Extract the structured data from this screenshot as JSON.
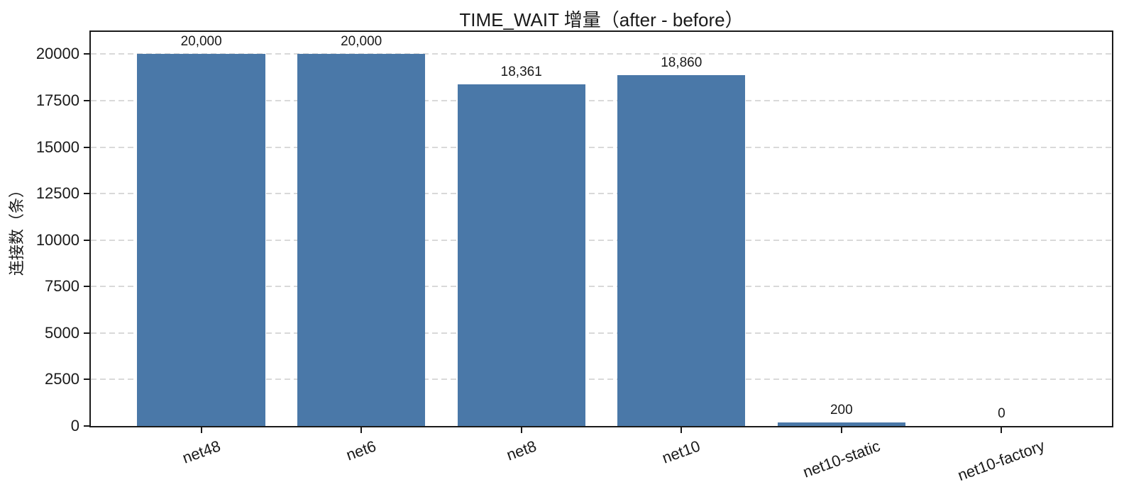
{
  "chart_data": {
    "type": "bar",
    "title": "TIME_WAIT 增量（after - before）",
    "xlabel": "",
    "ylabel": "连接数（条）",
    "categories": [
      "net48",
      "net6",
      "net8",
      "net10",
      "net10-static",
      "net10-factory"
    ],
    "values": [
      20000,
      20000,
      18361,
      18860,
      200,
      0
    ],
    "value_labels": [
      "20,000",
      "20,000",
      "18,361",
      "18,860",
      "200",
      "0"
    ],
    "yticks": [
      0,
      2500,
      5000,
      7500,
      10000,
      12500,
      15000,
      17500,
      20000
    ],
    "ytick_labels": [
      "0",
      "2500",
      "5000",
      "7500",
      "10000",
      "12500",
      "15000",
      "17500",
      "20000"
    ],
    "ylim": [
      0,
      21200
    ],
    "grid": {
      "axis": "y",
      "style": "dashed",
      "color": "#d9d9d9"
    },
    "legend": "none",
    "bar_color": "#4a78a8",
    "bar_width_fraction": 0.8,
    "x_tick_rotation_deg": 20
  }
}
